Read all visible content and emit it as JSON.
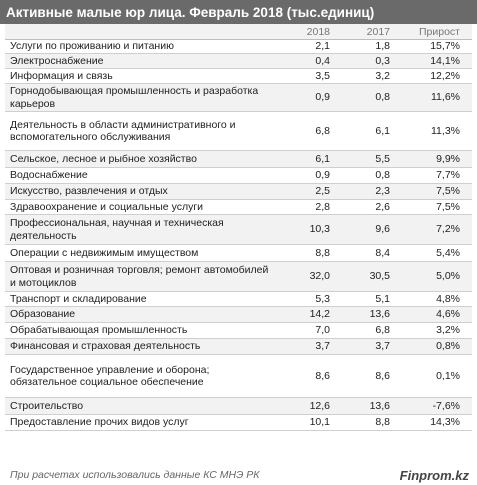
{
  "chart_data": {
    "type": "table",
    "title": "Активные малые юр лица. Февраль 2018 (тыс.единиц)",
    "columns": [
      "",
      "2018",
      "2017",
      "Прирост"
    ],
    "rows": [
      {
        "label": "Услуги по проживанию и питанию",
        "v2018": "2,1",
        "v2017": "1,8",
        "growth": "15,7%"
      },
      {
        "label": "Электроснабжение",
        "v2018": "0,4",
        "v2017": "0,3",
        "growth": "14,1%"
      },
      {
        "label": "Информация и связь",
        "v2018": "3,5",
        "v2017": "3,2",
        "growth": "12,2%"
      },
      {
        "label": "Горнодобывающая промышленность и разработка карьеров",
        "v2018": "0,9",
        "v2017": "0,8",
        "growth": "11,6%"
      },
      {
        "label": "Деятельность в области административного и вспомогательного обслуживания",
        "v2018": "6,8",
        "v2017": "6,1",
        "growth": "11,3%"
      },
      {
        "label": "Сельское, лесное и рыбное хозяйство",
        "v2018": "6,1",
        "v2017": "5,5",
        "growth": "9,9%"
      },
      {
        "label": "Водоснабжение",
        "v2018": "0,9",
        "v2017": "0,8",
        "growth": "7,7%"
      },
      {
        "label": "Искусство, развлечения и отдых",
        "v2018": "2,5",
        "v2017": "2,3",
        "growth": "7,5%"
      },
      {
        "label": "Здравоохранение и социальные услуги",
        "v2018": "2,8",
        "v2017": "2,6",
        "growth": "7,5%"
      },
      {
        "label": "Профессиональная, научная и техническая деятельность",
        "v2018": "10,3",
        "v2017": "9,6",
        "growth": "7,2%"
      },
      {
        "label": "Операции с недвижимым имуществом",
        "v2018": "8,8",
        "v2017": "8,4",
        "growth": "5,4%"
      },
      {
        "label": "Оптовая и розничная торговля; ремонт автомобилей и мотоциклов",
        "v2018": "32,0",
        "v2017": "30,5",
        "growth": "5,0%"
      },
      {
        "label": "Транспорт и складирование",
        "v2018": "5,3",
        "v2017": "5,1",
        "growth": "4,8%"
      },
      {
        "label": "Образование",
        "v2018": "14,2",
        "v2017": "13,6",
        "growth": "4,6%"
      },
      {
        "label": "Обрабатывающая промышленность",
        "v2018": "7,0",
        "v2017": "6,8",
        "growth": "3,2%"
      },
      {
        "label": "Финансовая и страховая деятельность",
        "v2018": "3,7",
        "v2017": "3,7",
        "growth": "0,8%"
      },
      {
        "label": "Государственное управление и оборона; обязательное социальное обеспечение",
        "v2018": "8,6",
        "v2017": "8,6",
        "growth": "0,1%"
      },
      {
        "label": "Строительство",
        "v2018": "12,6",
        "v2017": "13,6",
        "growth": "-7,6%"
      },
      {
        "label": "Предоставление прочих видов услуг",
        "v2018": "10,1",
        "v2017": "8,8",
        "growth": "14,3%"
      }
    ]
  },
  "footer": {
    "note": "При расчетах использовались данные КС МНЭ РК",
    "brand": "Finprom.kz"
  },
  "colors": {
    "title_bg": "#6a6a6a",
    "alt_row_bg": "#f2f2f2",
    "row_border": "#cfcfcf"
  }
}
